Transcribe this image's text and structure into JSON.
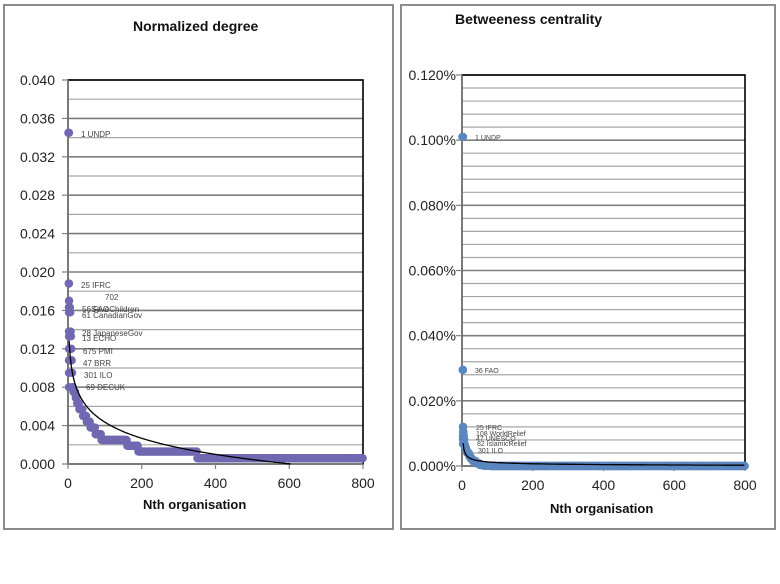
{
  "charts": [
    {
      "title": "Normalized degree",
      "xlabel": "Nth organisation",
      "y_ticks": [
        "0.000",
        "0.004",
        "0.008",
        "0.012",
        "0.016",
        "0.020",
        "0.024",
        "0.028",
        "0.032",
        "0.036",
        "0.040"
      ],
      "x_ticks": [
        "0",
        "200",
        "400",
        "600",
        "800"
      ]
    },
    {
      "title": "Betweeness centrality",
      "xlabel": "Nth organisation",
      "y_ticks": [
        "0.000%",
        "0.020%",
        "0.040%",
        "0.060%",
        "0.080%",
        "0.100%",
        "0.120%"
      ],
      "x_ticks": [
        "0",
        "200",
        "400",
        "600",
        "800"
      ]
    }
  ],
  "colors": {
    "degree_points": "#7068b0",
    "betweenness_points": "#5b86c0",
    "trendline": "#000000",
    "gridline": "#a6a6a6",
    "major_gridline": "#7f7f7f",
    "frame": "#8c8c8c"
  },
  "chart_data": [
    {
      "type": "scatter",
      "title": "Normalized degree",
      "xlabel": "Nth organisation",
      "ylabel": "",
      "xlim": [
        0,
        800
      ],
      "ylim": [
        0,
        0.04
      ],
      "grid": true,
      "y_major_step": 0.004,
      "y_minor_step": 0.002,
      "trendline": "logarithmic (black)",
      "annotations": [
        {
          "label": "1 UNDP",
          "x": 1,
          "y": 0.0345
        },
        {
          "label": "25 IFRC",
          "x": 2,
          "y": 0.0188
        },
        {
          "label": "702",
          "x": 3,
          "y": 0.017
        },
        {
          "label": "56 FAO",
          "x": 4,
          "y": 0.0163
        },
        {
          "label": "SaveChildren",
          "x": 5,
          "y": 0.0163
        },
        {
          "label": "61 CanadianGov",
          "x": 6,
          "y": 0.0158
        },
        {
          "label": "28 JapaneseGov",
          "x": 7,
          "y": 0.0138
        },
        {
          "label": "13 ECHO",
          "x": 8,
          "y": 0.0133
        },
        {
          "label": "675 PMI",
          "x": 9,
          "y": 0.012
        },
        {
          "label": "47 BRR",
          "x": 10,
          "y": 0.0108
        },
        {
          "label": "301 ILO",
          "x": 11,
          "y": 0.0095
        },
        {
          "label": "69 DECUK",
          "x": 12,
          "y": 0.008
        }
      ],
      "series": [
        {
          "name": "Normalized degree",
          "x": [
            1,
            2,
            3,
            4,
            5,
            6,
            7,
            8,
            9,
            10,
            11,
            12,
            15,
            20,
            25,
            30,
            40,
            50,
            60,
            75,
            90,
            110,
            135,
            160,
            190,
            220,
            250,
            280,
            310,
            350,
            400,
            500,
            600,
            700,
            800
          ],
          "values": [
            0.0345,
            0.0188,
            0.017,
            0.0163,
            0.0163,
            0.0158,
            0.0138,
            0.0133,
            0.012,
            0.0108,
            0.0095,
            0.008,
            0.0075,
            0.0069,
            0.0063,
            0.0057,
            0.005,
            0.0044,
            0.0038,
            0.0031,
            0.0025,
            0.0025,
            0.0025,
            0.0019,
            0.0013,
            0.0013,
            0.0013,
            0.0013,
            0.0013,
            0.0006,
            0.0006,
            0.0006,
            0.0006,
            0.0006,
            0.0006
          ]
        }
      ]
    },
    {
      "type": "scatter",
      "title": "Betweeness centrality",
      "xlabel": "Nth organisation",
      "ylabel": "",
      "xlim": [
        0,
        800
      ],
      "ylim": [
        0,
        0.12
      ],
      "y_unit": "%",
      "grid": true,
      "y_major_step": 0.02,
      "y_minor_step": 0.004,
      "trendline": "power/log (black)",
      "annotations": [
        {
          "label": "1 UNDP",
          "x": 1,
          "y": 0.101
        },
        {
          "label": "36 FAO",
          "x": 2,
          "y": 0.0295
        },
        {
          "label": "25 IFRC",
          "x": 3,
          "y": 0.012
        },
        {
          "label": "108 WorldRelief",
          "x": 4,
          "y": 0.0105
        },
        {
          "label": "47 UNESCO",
          "x": 5,
          "y": 0.0092
        },
        {
          "label": "82 IslamicRelief",
          "x": 6,
          "y": 0.0082
        },
        {
          "label": "301 ILO",
          "x": 7,
          "y": 0.0068
        }
      ],
      "series": [
        {
          "name": "Betweenness centrality",
          "x": [
            1,
            2,
            3,
            4,
            5,
            6,
            7,
            8,
            10,
            12,
            15,
            20,
            25,
            30,
            40,
            50,
            60,
            80,
            100,
            150,
            200,
            300,
            400,
            500,
            600,
            700,
            800
          ],
          "values": [
            0.101,
            0.0295,
            0.012,
            0.0105,
            0.0092,
            0.0082,
            0.0068,
            0.0062,
            0.0055,
            0.0048,
            0.004,
            0.003,
            0.0022,
            0.0015,
            0.0008,
            0.0003,
            0.0001,
            0,
            0,
            0,
            0,
            0,
            0,
            0,
            0,
            0,
            0
          ]
        }
      ]
    }
  ]
}
